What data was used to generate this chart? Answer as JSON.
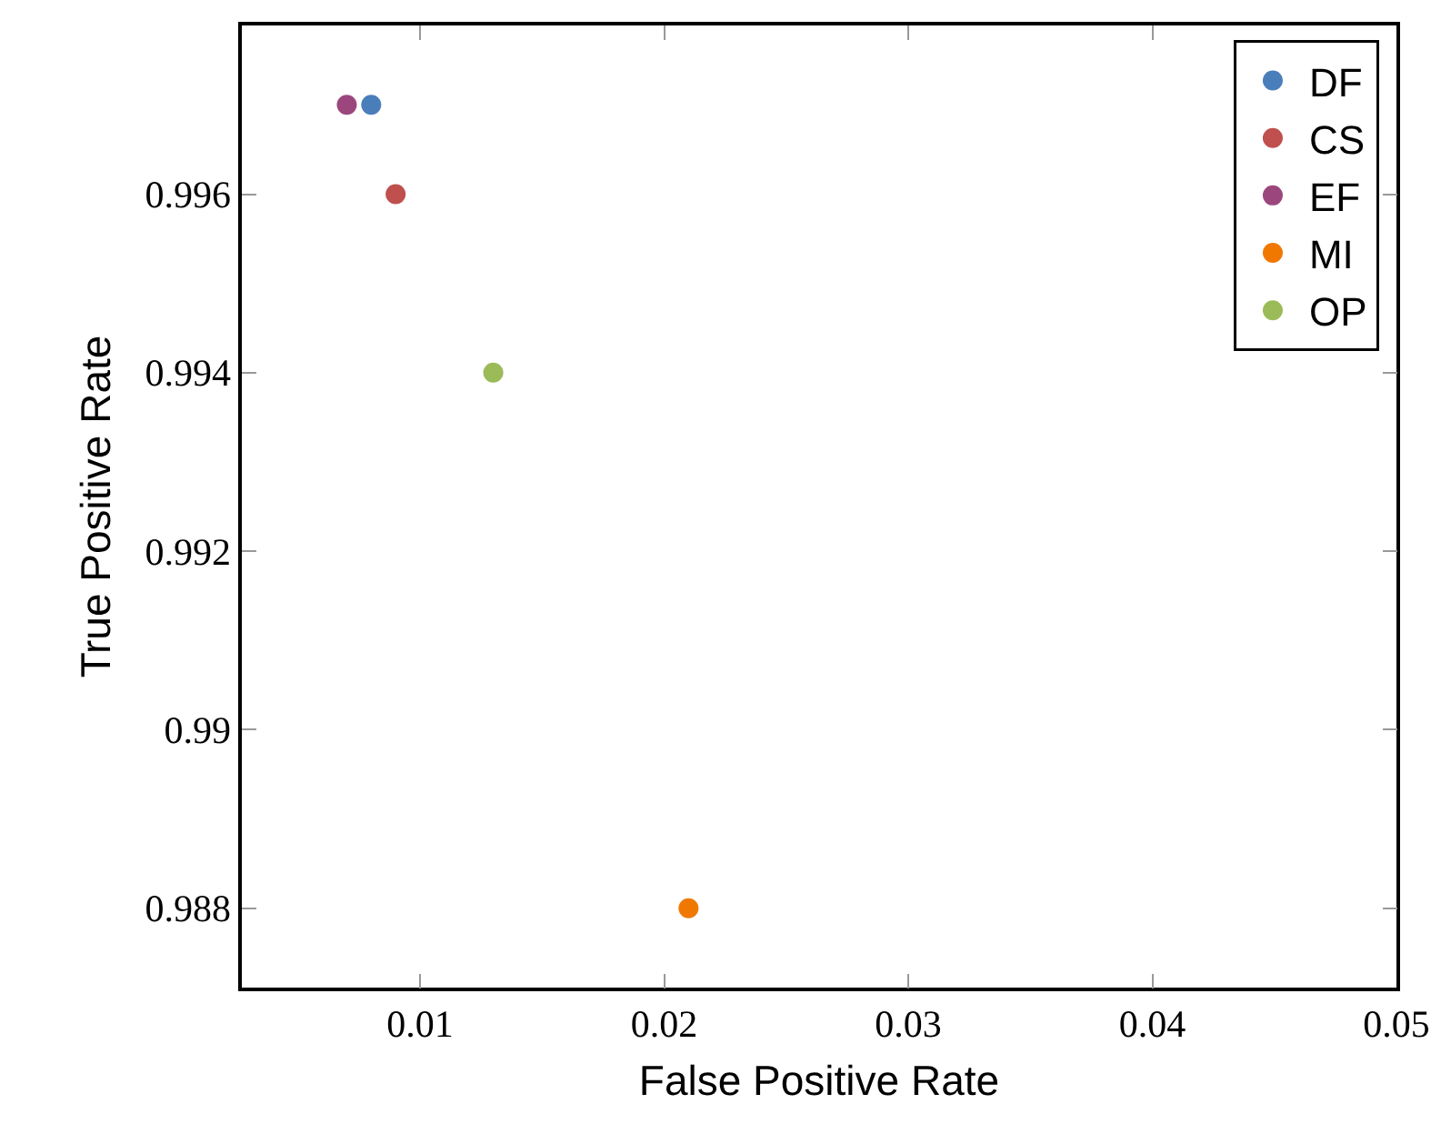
{
  "chart_data": {
    "type": "scatter",
    "xlabel": "False Positive Rate",
    "ylabel": "True Positive Rate",
    "xlim": [
      0.0027,
      0.05
    ],
    "xticks": [
      0.01,
      0.02,
      0.03,
      0.04,
      0.05
    ],
    "ylim": [
      0.98711,
      0.99789
    ],
    "yticks": [
      0.988,
      0.99,
      0.992,
      0.994,
      0.996
    ],
    "grid": false,
    "legend": "top right",
    "marker": "circle",
    "series": [
      {
        "name": "DF",
        "color": "#4a7ebb",
        "x": [
          0.008
        ],
        "values": [
          0.997
        ]
      },
      {
        "name": "CS",
        "color": "#c0504d",
        "x": [
          0.009
        ],
        "values": [
          0.996
        ]
      },
      {
        "name": "EF",
        "color": "#9b477d",
        "x": [
          0.007
        ],
        "values": [
          0.997
        ]
      },
      {
        "name": "MI",
        "color": "#f07800",
        "x": [
          0.021
        ],
        "values": [
          0.988
        ]
      },
      {
        "name": "OP",
        "color": "#9bbb59",
        "x": [
          0.013
        ],
        "values": [
          0.994
        ]
      }
    ]
  }
}
